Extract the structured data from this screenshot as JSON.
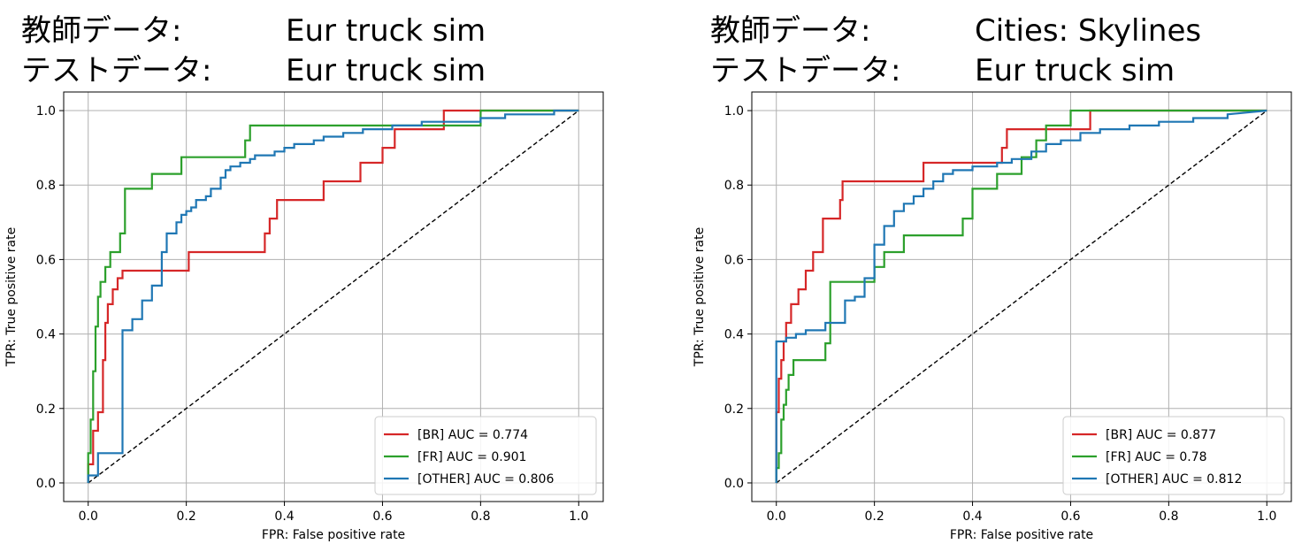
{
  "chart_data": [
    {
      "type": "line",
      "header": {
        "train_label": "教師データ:",
        "train_value": "Eur truck sim",
        "test_label": "テストデータ:",
        "test_value": "Eur truck sim"
      },
      "xlabel": "FPR: False positive rate",
      "ylabel": "TPR: True positive rate",
      "xlim": [
        -0.05,
        1.05
      ],
      "ylim": [
        -0.05,
        1.05
      ],
      "xticks": [
        0.0,
        0.2,
        0.4,
        0.6,
        0.8,
        1.0
      ],
      "yticks": [
        0.0,
        0.2,
        0.4,
        0.6,
        0.8,
        1.0
      ],
      "xtick_labels": [
        "0.0",
        "0.2",
        "0.4",
        "0.6",
        "0.8",
        "1.0"
      ],
      "ytick_labels": [
        "0.0",
        "0.2",
        "0.4",
        "0.6",
        "0.8",
        "1.0"
      ],
      "grid": true,
      "legend_position": "lower-right",
      "diagonal": {
        "x": [
          0,
          1
        ],
        "y": [
          0,
          1
        ],
        "style": "dashed",
        "color": "#000000"
      },
      "series": [
        {
          "name": "[BR] AUC = 0.774",
          "color": "#d62728",
          "x": [
            0,
            0,
            0.01,
            0.01,
            0.02,
            0.02,
            0.03,
            0.03,
            0.035,
            0.035,
            0.04,
            0.04,
            0.05,
            0.05,
            0.06,
            0.06,
            0.07,
            0.07,
            0.205,
            0.205,
            0.36,
            0.36,
            0.37,
            0.37,
            0.385,
            0.385,
            0.48,
            0.48,
            0.555,
            0.555,
            0.6,
            0.6,
            0.625,
            0.625,
            0.68,
            0.68,
            0.725,
            0.725,
            1.0
          ],
          "y": [
            0,
            0.05,
            0.05,
            0.14,
            0.14,
            0.19,
            0.19,
            0.33,
            0.33,
            0.43,
            0.43,
            0.48,
            0.48,
            0.52,
            0.52,
            0.55,
            0.55,
            0.57,
            0.57,
            0.62,
            0.62,
            0.67,
            0.67,
            0.71,
            0.71,
            0.76,
            0.76,
            0.81,
            0.81,
            0.86,
            0.86,
            0.9,
            0.9,
            0.95,
            0.95,
            0.95,
            0.95,
            1.0,
            1.0
          ]
        },
        {
          "name": "[FR] AUC = 0.901",
          "color": "#2ca02c",
          "x": [
            0,
            0,
            0.005,
            0.005,
            0.01,
            0.01,
            0.015,
            0.015,
            0.02,
            0.02,
            0.025,
            0.025,
            0.03,
            0.03,
            0.035,
            0.035,
            0.045,
            0.045,
            0.055,
            0.055,
            0.065,
            0.065,
            0.075,
            0.075,
            0.13,
            0.13,
            0.19,
            0.19,
            0.32,
            0.32,
            0.33,
            0.33,
            0.8,
            0.8,
            1.0
          ],
          "y": [
            0,
            0.08,
            0.08,
            0.17,
            0.17,
            0.3,
            0.3,
            0.42,
            0.42,
            0.5,
            0.5,
            0.54,
            0.54,
            0.54,
            0.54,
            0.58,
            0.58,
            0.62,
            0.62,
            0.62,
            0.62,
            0.67,
            0.67,
            0.79,
            0.79,
            0.83,
            0.83,
            0.875,
            0.875,
            0.92,
            0.92,
            0.96,
            0.96,
            1.0,
            1.0
          ]
        },
        {
          "name": "[OTHER] AUC = 0.806",
          "color": "#1f77b4",
          "x": [
            0,
            0,
            0.02,
            0.02,
            0.07,
            0.07,
            0.09,
            0.09,
            0.11,
            0.11,
            0.13,
            0.13,
            0.15,
            0.15,
            0.16,
            0.16,
            0.18,
            0.18,
            0.19,
            0.19,
            0.2,
            0.2,
            0.21,
            0.21,
            0.22,
            0.22,
            0.24,
            0.24,
            0.25,
            0.25,
            0.27,
            0.27,
            0.28,
            0.28,
            0.29,
            0.29,
            0.31,
            0.31,
            0.33,
            0.33,
            0.34,
            0.34,
            0.36,
            0.36,
            0.38,
            0.38,
            0.4,
            0.4,
            0.42,
            0.42,
            0.44,
            0.44,
            0.46,
            0.46,
            0.48,
            0.48,
            0.5,
            0.5,
            0.52,
            0.52,
            0.54,
            0.54,
            0.56,
            0.56,
            0.58,
            0.58,
            0.6,
            0.6,
            0.62,
            0.62,
            0.65,
            0.65,
            0.68,
            0.68,
            0.72,
            0.72,
            0.76,
            0.76,
            0.8,
            0.8,
            0.85,
            0.85,
            0.9,
            0.9,
            0.95,
            0.95,
            1.0
          ],
          "y": [
            0,
            0.02,
            0.02,
            0.08,
            0.08,
            0.41,
            0.41,
            0.44,
            0.44,
            0.49,
            0.49,
            0.53,
            0.53,
            0.62,
            0.62,
            0.67,
            0.67,
            0.7,
            0.7,
            0.72,
            0.72,
            0.73,
            0.73,
            0.74,
            0.74,
            0.76,
            0.76,
            0.77,
            0.77,
            0.79,
            0.79,
            0.82,
            0.82,
            0.84,
            0.84,
            0.85,
            0.85,
            0.86,
            0.86,
            0.87,
            0.87,
            0.88,
            0.88,
            0.88,
            0.88,
            0.89,
            0.89,
            0.9,
            0.9,
            0.91,
            0.91,
            0.91,
            0.91,
            0.92,
            0.92,
            0.93,
            0.93,
            0.93,
            0.93,
            0.94,
            0.94,
            0.94,
            0.94,
            0.95,
            0.95,
            0.95,
            0.95,
            0.95,
            0.95,
            0.96,
            0.96,
            0.96,
            0.96,
            0.97,
            0.97,
            0.97,
            0.97,
            0.97,
            0.97,
            0.98,
            0.98,
            0.99,
            0.99,
            0.99,
            0.99,
            1.0,
            1.0
          ]
        }
      ]
    },
    {
      "type": "line",
      "header": {
        "train_label": "教師データ:",
        "train_value": "Cities: Skylines",
        "test_label": "テストデータ:",
        "test_value": "Eur truck sim"
      },
      "xlabel": "FPR: False positive rate",
      "ylabel": "TPR: True positive rate",
      "xlim": [
        -0.05,
        1.05
      ],
      "ylim": [
        -0.05,
        1.05
      ],
      "xticks": [
        0.0,
        0.2,
        0.4,
        0.6,
        0.8,
        1.0
      ],
      "yticks": [
        0.0,
        0.2,
        0.4,
        0.6,
        0.8,
        1.0
      ],
      "xtick_labels": [
        "0.0",
        "0.2",
        "0.4",
        "0.6",
        "0.8",
        "1.0"
      ],
      "ytick_labels": [
        "0.0",
        "0.2",
        "0.4",
        "0.6",
        "0.8",
        "1.0"
      ],
      "grid": true,
      "legend_position": "lower-right",
      "diagonal": {
        "x": [
          0,
          1
        ],
        "y": [
          0,
          1
        ],
        "style": "dashed",
        "color": "#000000"
      },
      "series": [
        {
          "name": "[BR] AUC = 0.877",
          "color": "#d62728",
          "x": [
            0,
            0,
            0.005,
            0.005,
            0.01,
            0.01,
            0.015,
            0.015,
            0.02,
            0.02,
            0.03,
            0.03,
            0.045,
            0.045,
            0.06,
            0.06,
            0.075,
            0.075,
            0.095,
            0.095,
            0.11,
            0.11,
            0.13,
            0.13,
            0.135,
            0.135,
            0.3,
            0.3,
            0.46,
            0.46,
            0.47,
            0.47,
            0.5,
            0.5,
            0.64,
            0.64,
            1.0
          ],
          "y": [
            0,
            0.19,
            0.19,
            0.28,
            0.28,
            0.33,
            0.33,
            0.38,
            0.38,
            0.43,
            0.43,
            0.48,
            0.48,
            0.52,
            0.52,
            0.57,
            0.57,
            0.62,
            0.62,
            0.71,
            0.71,
            0.71,
            0.71,
            0.76,
            0.76,
            0.81,
            0.81,
            0.86,
            0.86,
            0.9,
            0.9,
            0.95,
            0.95,
            0.95,
            0.95,
            1.0,
            1.0
          ]
        },
        {
          "name": "[FR] AUC = 0.78",
          "color": "#2ca02c",
          "x": [
            0,
            0,
            0.005,
            0.005,
            0.01,
            0.01,
            0.015,
            0.015,
            0.02,
            0.02,
            0.025,
            0.025,
            0.035,
            0.035,
            0.1,
            0.1,
            0.11,
            0.11,
            0.2,
            0.2,
            0.22,
            0.22,
            0.26,
            0.26,
            0.36,
            0.36,
            0.38,
            0.38,
            0.4,
            0.4,
            0.45,
            0.45,
            0.5,
            0.5,
            0.53,
            0.53,
            0.55,
            0.55,
            0.58,
            0.58,
            0.6,
            0.6,
            0.63,
            0.63,
            1.0
          ],
          "y": [
            0,
            0.04,
            0.04,
            0.08,
            0.08,
            0.17,
            0.17,
            0.21,
            0.21,
            0.25,
            0.25,
            0.29,
            0.29,
            0.33,
            0.33,
            0.375,
            0.375,
            0.54,
            0.54,
            0.58,
            0.58,
            0.62,
            0.62,
            0.665,
            0.665,
            0.665,
            0.665,
            0.71,
            0.71,
            0.79,
            0.79,
            0.83,
            0.83,
            0.875,
            0.875,
            0.92,
            0.92,
            0.96,
            0.96,
            0.96,
            0.96,
            1.0,
            1.0,
            1.0,
            1.0
          ]
        },
        {
          "name": "[OTHER] AUC = 0.812",
          "color": "#1f77b4",
          "x": [
            0,
            0,
            0.02,
            0.02,
            0.04,
            0.04,
            0.06,
            0.06,
            0.1,
            0.1,
            0.14,
            0.14,
            0.16,
            0.16,
            0.18,
            0.18,
            0.2,
            0.2,
            0.22,
            0.22,
            0.24,
            0.24,
            0.26,
            0.26,
            0.28,
            0.28,
            0.3,
            0.3,
            0.32,
            0.32,
            0.34,
            0.34,
            0.36,
            0.36,
            0.38,
            0.38,
            0.4,
            0.4,
            0.42,
            0.42,
            0.45,
            0.45,
            0.48,
            0.48,
            0.5,
            0.5,
            0.52,
            0.52,
            0.55,
            0.55,
            0.58,
            0.58,
            0.62,
            0.62,
            0.66,
            0.66,
            0.72,
            0.72,
            0.78,
            0.78,
            0.85,
            0.85,
            0.92,
            0.92,
            1.0
          ],
          "y": [
            0,
            0.38,
            0.38,
            0.39,
            0.39,
            0.4,
            0.4,
            0.41,
            0.41,
            0.43,
            0.43,
            0.49,
            0.49,
            0.5,
            0.5,
            0.55,
            0.55,
            0.64,
            0.64,
            0.69,
            0.69,
            0.73,
            0.73,
            0.75,
            0.75,
            0.77,
            0.77,
            0.79,
            0.79,
            0.81,
            0.81,
            0.83,
            0.83,
            0.84,
            0.84,
            0.84,
            0.84,
            0.85,
            0.85,
            0.85,
            0.85,
            0.86,
            0.86,
            0.87,
            0.87,
            0.87,
            0.87,
            0.89,
            0.89,
            0.91,
            0.91,
            0.92,
            0.92,
            0.94,
            0.94,
            0.95,
            0.95,
            0.96,
            0.96,
            0.97,
            0.97,
            0.98,
            0.98,
            0.99,
            1.0
          ]
        }
      ]
    }
  ]
}
